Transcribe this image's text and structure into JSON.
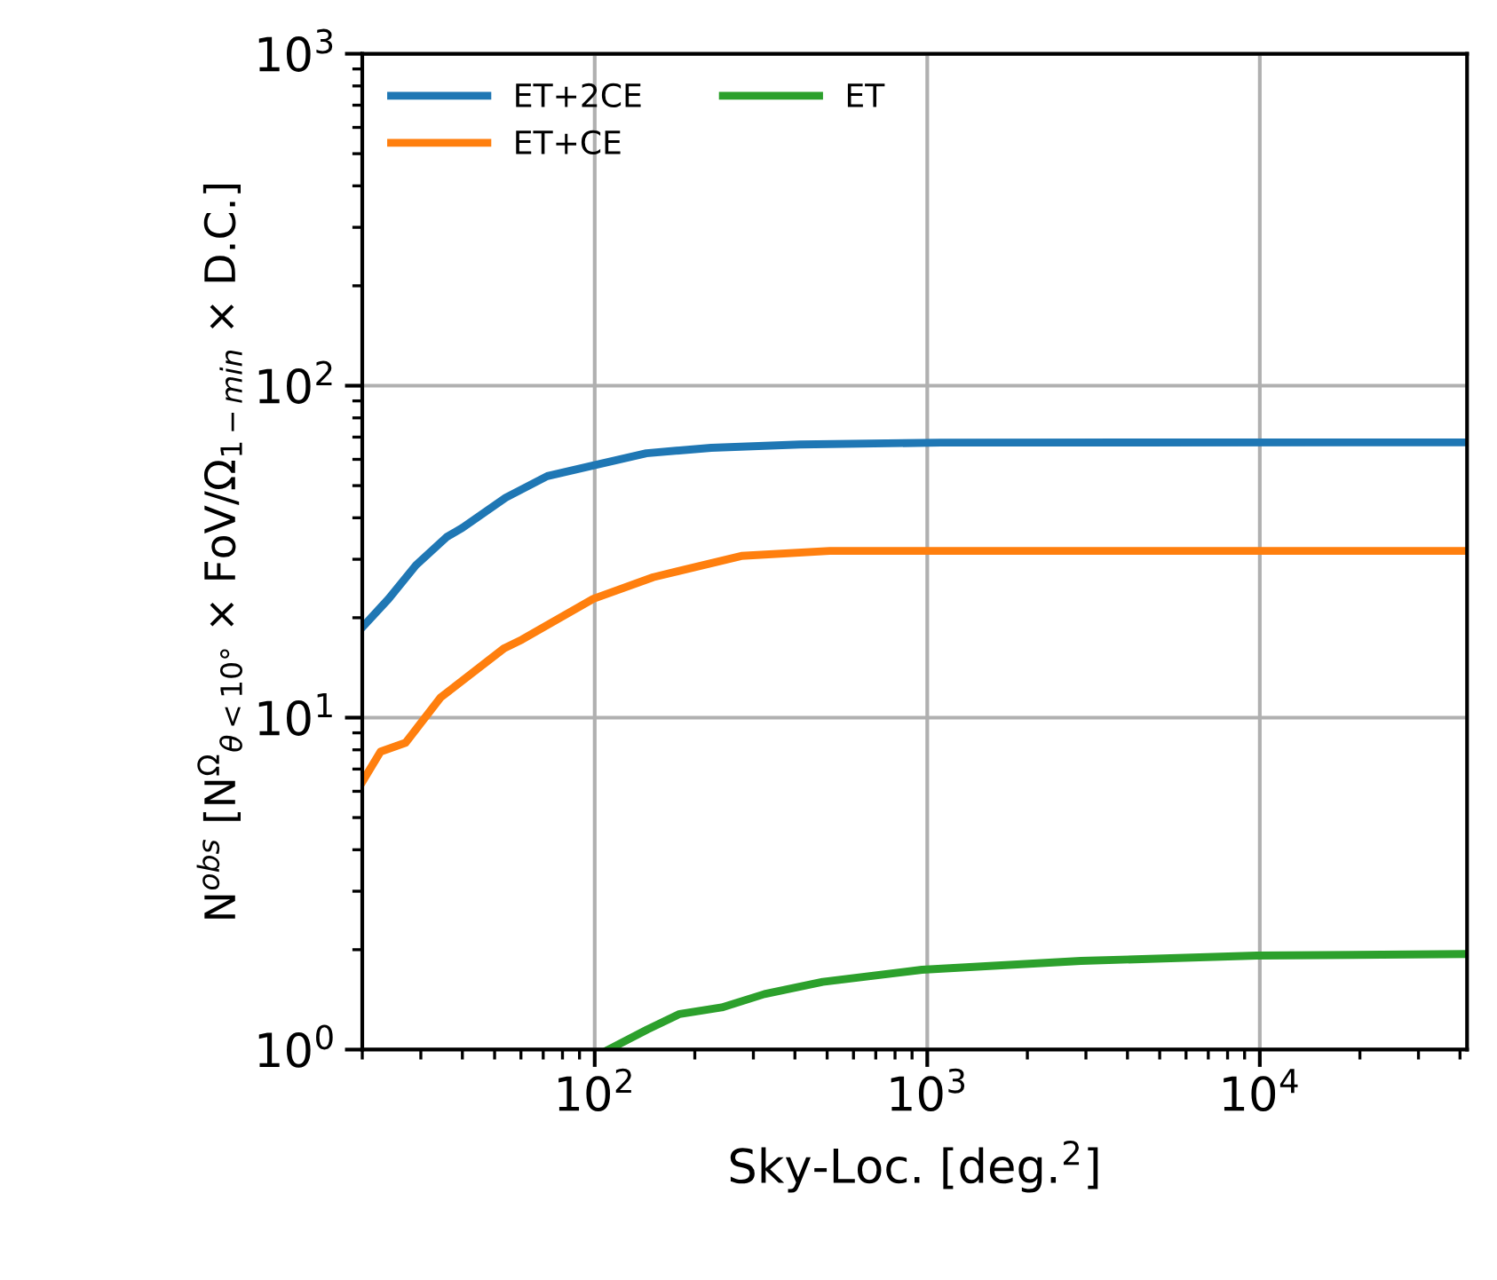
{
  "chart_data": {
    "type": "line",
    "xlabel": "Sky-Loc. [deg.$^{2}$]",
    "ylabel": "N$^{obs}$ [N$^{Ω}$$_{θ<10°}$ × FoV/Ω$_{1−min}$ × D.C.]",
    "log": "xy",
    "grid": true,
    "legend": "top left",
    "line_style": "solid",
    "marker": "none",
    "xlim": [
      20,
      42000
    ],
    "ylim": [
      1,
      1000
    ],
    "xticks": [
      {
        "value": 100,
        "label": "10$^{2}$"
      },
      {
        "value": 1000,
        "label": "10$^{3}$"
      },
      {
        "value": 10000,
        "label": "10$^{4}$"
      }
    ],
    "yticks": [
      {
        "value": 1,
        "label": "10$^{0}$"
      },
      {
        "value": 10,
        "label": "10$^{1}$"
      },
      {
        "value": 100,
        "label": "10$^{2}$"
      },
      {
        "value": 1000,
        "label": "10$^{3}$"
      }
    ],
    "series": [
      {
        "name": "ET+2CE",
        "color": "#1f77b4",
        "x": [
          20,
          24,
          29,
          36,
          40,
          54,
          72,
          99,
          143,
          224,
          414,
          1100,
          42000
        ],
        "values": [
          18.7,
          22.8,
          28.8,
          35.1,
          37.3,
          46.0,
          53.4,
          57.5,
          62.6,
          65.0,
          66.5,
          67.4,
          67.5
        ]
      },
      {
        "name": "ET+CE",
        "color": "#ff7f0e",
        "x": [
          20,
          22.7,
          27,
          34.4,
          53.5,
          60.5,
          99,
          150,
          276,
          509,
          42000
        ],
        "values": [
          6.4,
          7.9,
          8.4,
          11.5,
          16.2,
          17.2,
          22.8,
          26.5,
          30.7,
          31.8,
          31.8
        ]
      },
      {
        "name": "ET",
        "color": "#2ca02c",
        "x": [
          110,
          144,
          180,
          241,
          324,
          485,
          964,
          2900,
          9800,
          42000
        ],
        "values": [
          1.0,
          1.15,
          1.28,
          1.34,
          1.47,
          1.6,
          1.74,
          1.85,
          1.92,
          1.94
        ]
      }
    ]
  }
}
